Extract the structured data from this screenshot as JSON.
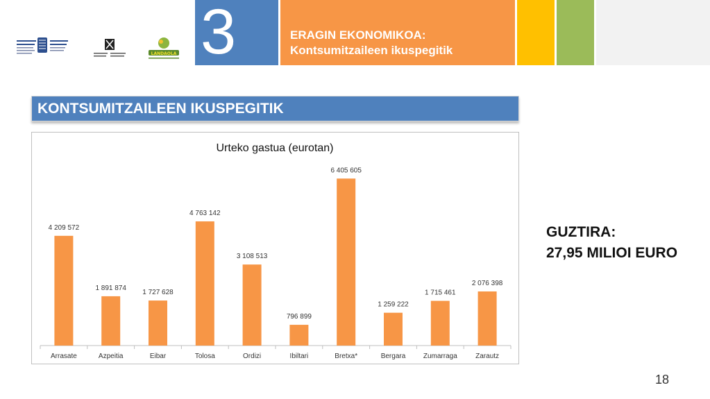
{
  "header": {
    "section_number": "3",
    "title_line1": "ERAGIN EKONOMIKOA:",
    "title_line2": "Kontsumitzaileen ikuspegitik",
    "logos": [
      {
        "name": "gipuzkoa-logo",
        "text": "Gipuzkoako Foru Aldundia / Diputación Foral de Gipuzkoa"
      },
      {
        "name": "ehu-logo",
        "text": "Universidad del País Vasco / Euskal Herriko Unibertsitatea"
      },
      {
        "name": "landaola-logo",
        "text": "LANDAOLA"
      }
    ]
  },
  "section_title": "KONTSUMITZAILEEN IKUSPEGITIK",
  "chart_data": {
    "type": "bar",
    "title": "Urteko gastua (eurotan)",
    "xlabel": "",
    "ylabel": "",
    "categories": [
      "Arrasate",
      "Azpeitia",
      "Eibar",
      "Tolosa",
      "Ordizi",
      "Ibiltari",
      "Bretxa*",
      "Bergara",
      "Zumarraga",
      "Zarautz"
    ],
    "values": [
      4209572,
      1891874,
      1727628,
      4763142,
      3108513,
      796899,
      6405605,
      1259222,
      1715461,
      2076398
    ],
    "labels": [
      "4 209 572",
      "1 891 874",
      "1 727 628",
      "4 763 142",
      "3 108 513",
      "796 899",
      "6 405 605",
      "1 259 222",
      "1 715 461",
      "2 076 398"
    ],
    "ylim": [
      0,
      7000000
    ],
    "grid": false,
    "legend": "none",
    "bar_color": "#f79646"
  },
  "summary": {
    "line1": "GUZTIRA:",
    "line2": "27,95 MILIOI EURO"
  },
  "page_number": "18"
}
